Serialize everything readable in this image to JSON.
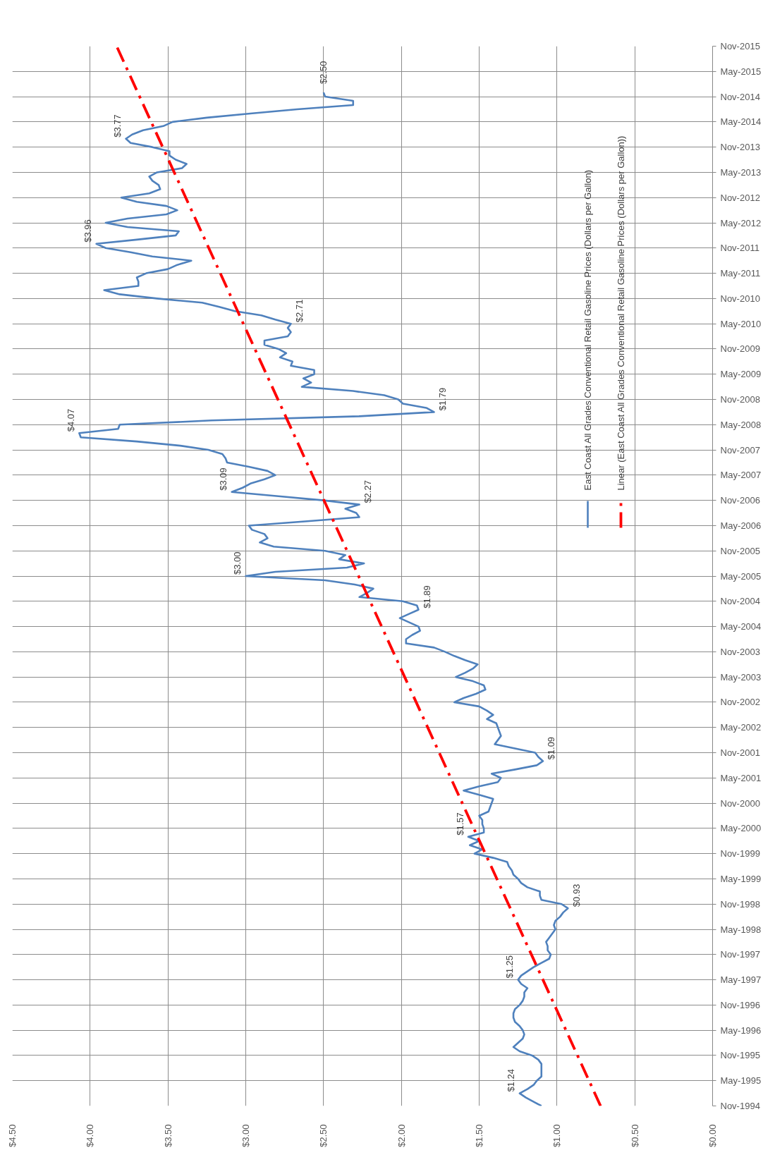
{
  "chart_data": {
    "type": "line",
    "orientation": "horizontal",
    "x": [
      "1994-11",
      "1994-12",
      "1995-01",
      "1995-02",
      "1995-03",
      "1995-04",
      "1995-05",
      "1995-06",
      "1995-07",
      "1995-08",
      "1995-09",
      "1995-10",
      "1995-11",
      "1995-12",
      "1996-01",
      "1996-02",
      "1996-03",
      "1996-04",
      "1996-05",
      "1996-06",
      "1996-07",
      "1996-08",
      "1996-09",
      "1996-10",
      "1996-11",
      "1996-12",
      "1997-01",
      "1997-02",
      "1997-03",
      "1997-04",
      "1997-05",
      "1997-06",
      "1997-07",
      "1997-08",
      "1997-09",
      "1997-10",
      "1997-11",
      "1997-12",
      "1998-01",
      "1998-02",
      "1998-03",
      "1998-04",
      "1998-05",
      "1998-06",
      "1998-07",
      "1998-08",
      "1998-09",
      "1998-10",
      "1998-11",
      "1998-12",
      "1999-01",
      "1999-02",
      "1999-03",
      "1999-04",
      "1999-05",
      "1999-06",
      "1999-07",
      "1999-08",
      "1999-09",
      "1999-10",
      "1999-11",
      "1999-12",
      "2000-01",
      "2000-02",
      "2000-03",
      "2000-04",
      "2000-05",
      "2000-06",
      "2000-07",
      "2000-08",
      "2000-09",
      "2000-10",
      "2000-11",
      "2000-12",
      "2001-01",
      "2001-02",
      "2001-03",
      "2001-04",
      "2001-05",
      "2001-06",
      "2001-07",
      "2001-08",
      "2001-09",
      "2001-10",
      "2001-11",
      "2001-12",
      "2002-01",
      "2002-02",
      "2002-03",
      "2002-04",
      "2002-05",
      "2002-06",
      "2002-07",
      "2002-08",
      "2002-09",
      "2002-10",
      "2002-11",
      "2002-12",
      "2003-01",
      "2003-02",
      "2003-03",
      "2003-04",
      "2003-05",
      "2003-06",
      "2003-07",
      "2003-08",
      "2003-09",
      "2003-10",
      "2003-11",
      "2003-12",
      "2004-01",
      "2004-02",
      "2004-03",
      "2004-04",
      "2004-05",
      "2004-06",
      "2004-07",
      "2004-08",
      "2004-09",
      "2004-10",
      "2004-11",
      "2004-12",
      "2005-01",
      "2005-02",
      "2005-03",
      "2005-04",
      "2005-05",
      "2005-06",
      "2005-07",
      "2005-08",
      "2005-09",
      "2005-10",
      "2005-11",
      "2005-12",
      "2006-01",
      "2006-02",
      "2006-03",
      "2006-04",
      "2006-05",
      "2006-06",
      "2006-07",
      "2006-08",
      "2006-09",
      "2006-10",
      "2006-11",
      "2006-12",
      "2007-01",
      "2007-02",
      "2007-03",
      "2007-04",
      "2007-05",
      "2007-06",
      "2007-07",
      "2007-08",
      "2007-09",
      "2007-10",
      "2007-11",
      "2007-12",
      "2008-01",
      "2008-02",
      "2008-03",
      "2008-04",
      "2008-05",
      "2008-06",
      "2008-07",
      "2008-08",
      "2008-09",
      "2008-10",
      "2008-11",
      "2008-12",
      "2009-01",
      "2009-02",
      "2009-03",
      "2009-04",
      "2009-05",
      "2009-06",
      "2009-07",
      "2009-08",
      "2009-09",
      "2009-10",
      "2009-11",
      "2009-12",
      "2010-01",
      "2010-02",
      "2010-03",
      "2010-04",
      "2010-05",
      "2010-06",
      "2010-07",
      "2010-08",
      "2010-09",
      "2010-10",
      "2010-11",
      "2010-12",
      "2011-01",
      "2011-02",
      "2011-03",
      "2011-04",
      "2011-05",
      "2011-06",
      "2011-07",
      "2011-08",
      "2011-09",
      "2011-10",
      "2011-11",
      "2011-12",
      "2012-01",
      "2012-02",
      "2012-03",
      "2012-04",
      "2012-05",
      "2012-06",
      "2012-07",
      "2012-08",
      "2012-09",
      "2012-10",
      "2012-11",
      "2012-12",
      "2013-01",
      "2013-02",
      "2013-03",
      "2013-04",
      "2013-05",
      "2013-06",
      "2013-07",
      "2013-08",
      "2013-09",
      "2013-10",
      "2013-11",
      "2013-12",
      "2014-01",
      "2014-02",
      "2014-03",
      "2014-04",
      "2014-05",
      "2014-06",
      "2014-07",
      "2014-08",
      "2014-09",
      "2014-10",
      "2014-11",
      "2014-12"
    ],
    "series": [
      {
        "name": "East Coast All Grades Conventional Retail Gasoline Prices (Dollars per Gallon)",
        "color": "#4f81bd",
        "values": [
          1.1,
          1.15,
          1.2,
          1.24,
          1.19,
          1.15,
          1.13,
          1.1,
          1.1,
          1.1,
          1.1,
          1.12,
          1.16,
          1.24,
          1.28,
          1.25,
          1.22,
          1.21,
          1.22,
          1.24,
          1.27,
          1.28,
          1.28,
          1.27,
          1.24,
          1.22,
          1.21,
          1.21,
          1.19,
          1.23,
          1.25,
          1.23,
          1.19,
          1.15,
          1.1,
          1.05,
          1.04,
          1.06,
          1.06,
          1.07,
          1.05,
          1.03,
          1.01,
          1.02,
          1.01,
          0.98,
          0.96,
          0.93,
          0.97,
          1.1,
          1.11,
          1.11,
          1.19,
          1.23,
          1.25,
          1.28,
          1.29,
          1.31,
          1.32,
          1.41,
          1.53,
          1.48,
          1.56,
          1.5,
          1.57,
          1.47,
          1.47,
          1.48,
          1.48,
          1.5,
          1.44,
          1.43,
          1.42,
          1.41,
          1.5,
          1.6,
          1.5,
          1.38,
          1.36,
          1.42,
          1.27,
          1.13,
          1.09,
          1.12,
          1.14,
          1.27,
          1.4,
          1.38,
          1.36,
          1.37,
          1.38,
          1.39,
          1.45,
          1.41,
          1.45,
          1.5,
          1.66,
          1.6,
          1.52,
          1.46,
          1.47,
          1.54,
          1.65,
          1.59,
          1.54,
          1.51,
          1.59,
          1.66,
          1.72,
          1.79,
          1.97,
          1.97,
          1.93,
          1.88,
          1.89,
          1.95,
          2.01,
          1.95,
          1.89,
          1.9,
          1.99,
          2.27,
          2.22,
          2.18,
          2.3,
          2.49,
          3.0,
          2.81,
          2.35,
          2.24,
          2.4,
          2.36,
          2.49,
          2.82,
          2.91,
          2.86,
          2.88,
          2.96,
          2.98,
          2.62,
          2.27,
          2.29,
          2.36,
          2.27,
          2.5,
          2.79,
          3.09,
          3.02,
          2.97,
          2.88,
          2.81,
          2.86,
          2.98,
          3.12,
          3.13,
          3.15,
          3.24,
          3.42,
          3.7,
          4.06,
          4.07,
          3.82,
          3.81,
          3.22,
          2.27,
          1.79,
          1.84,
          1.99,
          2.02,
          2.11,
          2.31,
          2.64,
          2.58,
          2.63,
          2.56,
          2.56,
          2.71,
          2.7,
          2.78,
          2.74,
          2.79,
          2.88,
          2.88,
          2.73,
          2.71,
          2.73,
          2.71,
          2.81,
          2.9,
          3.07,
          3.17,
          3.28,
          3.57,
          3.81,
          3.91,
          3.69,
          3.69,
          3.7,
          3.64,
          3.5,
          3.44,
          3.35,
          3.6,
          3.74,
          3.9,
          3.96,
          3.7,
          3.45,
          3.43,
          3.76,
          3.9,
          3.76,
          3.51,
          3.44,
          3.51,
          3.7,
          3.8,
          3.62,
          3.55,
          3.56,
          3.6,
          3.62,
          3.57,
          3.41,
          3.38,
          3.45,
          3.49,
          3.49,
          3.6,
          3.74,
          3.77,
          3.73,
          3.66,
          3.53,
          3.47,
          3.25,
          2.97,
          2.67,
          2.31,
          2.31,
          2.49,
          2.5
        ],
        "value_labels": [
          null,
          null,
          null,
          "$1.24",
          null,
          null,
          null,
          null,
          null,
          null,
          null,
          null,
          null,
          null,
          null,
          null,
          null,
          null,
          null,
          null,
          null,
          null,
          null,
          null,
          null,
          null,
          null,
          null,
          null,
          null,
          "$1.25",
          null,
          null,
          null,
          null,
          null,
          null,
          null,
          null,
          null,
          null,
          null,
          null,
          null,
          null,
          null,
          null,
          "$0.93",
          null,
          null,
          null,
          null,
          null,
          null,
          null,
          null,
          null,
          null,
          null,
          null,
          null,
          null,
          null,
          null,
          "$1.57",
          null,
          null,
          null,
          null,
          null,
          null,
          null,
          null,
          null,
          null,
          null,
          null,
          null,
          null,
          null,
          null,
          null,
          "$1.09",
          null,
          null,
          null,
          null,
          null,
          null,
          null,
          null,
          null,
          null,
          null,
          null,
          null,
          null,
          null,
          null,
          null,
          null,
          null,
          null,
          null,
          null,
          null,
          null,
          null,
          null,
          null,
          null,
          null,
          null,
          null,
          null,
          null,
          null,
          null,
          "$1.89",
          null,
          null,
          null,
          null,
          null,
          null,
          null,
          "$3.00",
          null,
          null,
          null,
          null,
          null,
          null,
          null,
          null,
          null,
          null,
          null,
          null,
          null,
          null,
          null,
          null,
          "$2.27",
          null,
          null,
          "$3.09",
          null,
          null,
          null,
          null,
          null,
          null,
          null,
          null,
          null,
          null,
          null,
          null,
          null,
          "$4.07",
          null,
          null,
          null,
          null,
          "$1.79",
          null,
          null,
          null,
          null,
          null,
          null,
          null,
          null,
          null,
          null,
          null,
          null,
          null,
          null,
          null,
          null,
          null,
          null,
          null,
          null,
          "$2.71",
          null,
          null,
          null,
          null,
          null,
          null,
          null,
          null,
          null,
          null,
          null,
          null,
          null,
          null,
          null,
          null,
          null,
          null,
          "$3.96",
          null,
          null,
          null,
          null,
          null,
          null,
          null,
          null,
          null,
          null,
          null,
          null,
          null,
          null,
          null,
          null,
          null,
          null,
          null,
          null,
          null,
          null,
          null,
          null,
          "$3.77",
          null,
          null,
          null,
          null,
          null,
          null,
          null,
          null,
          null,
          null,
          "$2.50"
        ]
      },
      {
        "name": "Linear (East Coast All Grades Conventional Retail Gasoline Prices (Dollars per Gallon))",
        "type": "line",
        "color": "#ff0000",
        "line_style": "dashdot",
        "x": [
          "1994-11",
          "2015-11"
        ],
        "values": [
          0.72,
          3.83
        ]
      }
    ],
    "xlim": [
      4.5,
      0
    ],
    "xticks": [
      {
        "value": 0,
        "label": "$0.00"
      },
      {
        "value": 0.5,
        "label": "$0.50"
      },
      {
        "value": 1,
        "label": "$1.00"
      },
      {
        "value": 1.5,
        "label": "$1.50"
      },
      {
        "value": 2,
        "label": "$2.00"
      },
      {
        "value": 2.5,
        "label": "$2.50"
      },
      {
        "value": 3,
        "label": "$3.00"
      },
      {
        "value": 3.5,
        "label": "$3.50"
      },
      {
        "value": 4,
        "label": "$4.00"
      },
      {
        "value": 4.5,
        "label": "$4.50"
      }
    ],
    "ylim": [
      "1994-11",
      "2015-11"
    ],
    "yticks": [
      {
        "value": "1994-11",
        "label": "Nov-1994"
      },
      {
        "value": "1995-05",
        "label": "May-1995"
      },
      {
        "value": "1995-11",
        "label": "Nov-1995"
      },
      {
        "value": "1996-05",
        "label": "May-1996"
      },
      {
        "value": "1996-11",
        "label": "Nov-1996"
      },
      {
        "value": "1997-05",
        "label": "May-1997"
      },
      {
        "value": "1997-11",
        "label": "Nov-1997"
      },
      {
        "value": "1998-05",
        "label": "May-1998"
      },
      {
        "value": "1998-11",
        "label": "Nov-1998"
      },
      {
        "value": "1999-05",
        "label": "May-1999"
      },
      {
        "value": "1999-11",
        "label": "Nov-1999"
      },
      {
        "value": "2000-05",
        "label": "May-2000"
      },
      {
        "value": "2000-11",
        "label": "Nov-2000"
      },
      {
        "value": "2001-05",
        "label": "May-2001"
      },
      {
        "value": "2001-11",
        "label": "Nov-2001"
      },
      {
        "value": "2002-05",
        "label": "May-2002"
      },
      {
        "value": "2002-11",
        "label": "Nov-2002"
      },
      {
        "value": "2003-05",
        "label": "May-2003"
      },
      {
        "value": "2003-11",
        "label": "Nov-2003"
      },
      {
        "value": "2004-05",
        "label": "May-2004"
      },
      {
        "value": "2004-11",
        "label": "Nov-2004"
      },
      {
        "value": "2005-05",
        "label": "May-2005"
      },
      {
        "value": "2005-11",
        "label": "Nov-2005"
      },
      {
        "value": "2006-05",
        "label": "May-2006"
      },
      {
        "value": "2006-11",
        "label": "Nov-2006"
      },
      {
        "value": "2007-05",
        "label": "May-2007"
      },
      {
        "value": "2007-11",
        "label": "Nov-2007"
      },
      {
        "value": "2008-05",
        "label": "May-2008"
      },
      {
        "value": "2008-11",
        "label": "Nov-2008"
      },
      {
        "value": "2009-05",
        "label": "May-2009"
      },
      {
        "value": "2009-11",
        "label": "Nov-2009"
      },
      {
        "value": "2010-05",
        "label": "May-2010"
      },
      {
        "value": "2010-11",
        "label": "Nov-2010"
      },
      {
        "value": "2011-05",
        "label": "May-2011"
      },
      {
        "value": "2011-11",
        "label": "Nov-2011"
      },
      {
        "value": "2012-05",
        "label": "May-2012"
      },
      {
        "value": "2012-11",
        "label": "Nov-2012"
      },
      {
        "value": "2013-05",
        "label": "May-2013"
      },
      {
        "value": "2013-11",
        "label": "Nov-2013"
      },
      {
        "value": "2014-05",
        "label": "May-2014"
      },
      {
        "value": "2014-11",
        "label": "Nov-2014"
      },
      {
        "value": "2015-05",
        "label": "May-2015"
      },
      {
        "value": "2015-11",
        "label": "Nov-2015"
      }
    ],
    "grid": true,
    "legend": "top right",
    "line_style": "solid"
  }
}
